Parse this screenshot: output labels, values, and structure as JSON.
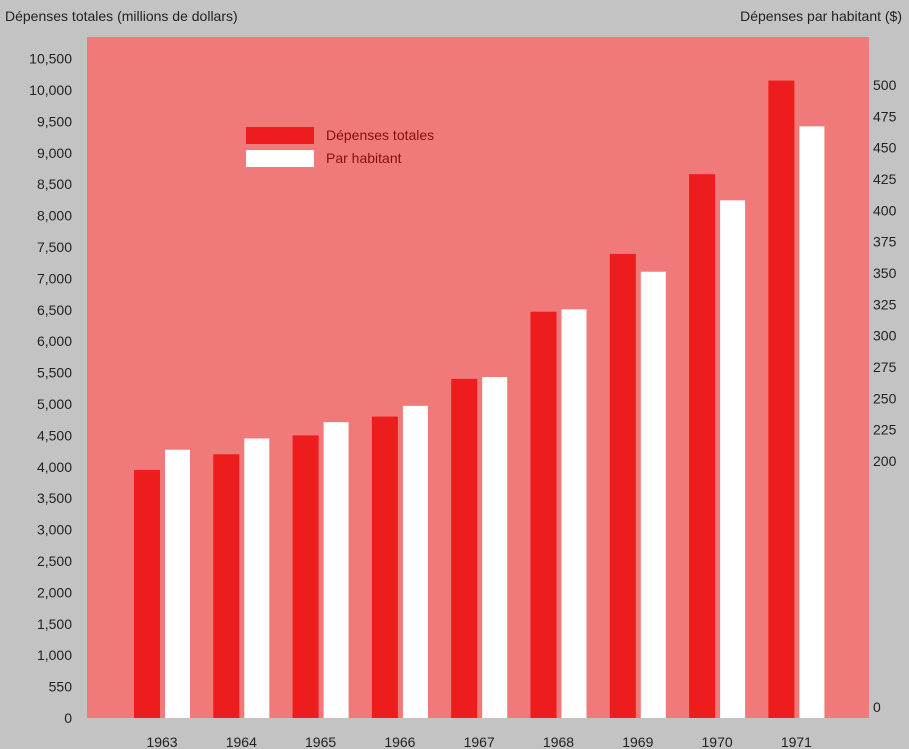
{
  "chart_data": {
    "type": "bar",
    "title": "",
    "ylabel_left": "Dépenses totales (millions de dollars)",
    "ylabel_right": "Dépenses par habitant ($)",
    "categories": [
      "1963",
      "1964",
      "1965",
      "1966",
      "1967",
      "1968",
      "1969",
      "1970",
      "1971"
    ],
    "series": [
      {
        "name": "Dépenses totales",
        "axis": "left",
        "color": "#ee1d1d",
        "values": [
          3950,
          4200,
          4500,
          4800,
          5400,
          6470,
          7390,
          8660,
          10150
        ]
      },
      {
        "name": "Par habitant",
        "axis": "right",
        "color": "#ffffff",
        "values": [
          209,
          218,
          231,
          244,
          267,
          321,
          351,
          408,
          467
        ]
      }
    ],
    "left_ticks": [
      "0",
      "550",
      "1,000",
      "1,500",
      "2,000",
      "2,500",
      "3,000",
      "3,500",
      "4,000",
      "4,500",
      "5,000",
      "5,500",
      "6,000",
      "6,500",
      "7,000",
      "7,500",
      "8,000",
      "8,500",
      "9,000",
      "9,500",
      "10,000",
      "10,500"
    ],
    "right_ticks": [
      "0",
      "200",
      "225",
      "250",
      "275",
      "300",
      "325",
      "350",
      "375",
      "400",
      "425",
      "450",
      "475",
      "500"
    ],
    "plot_background": "#f0797a",
    "legend_position": "top-left",
    "grid": false
  }
}
